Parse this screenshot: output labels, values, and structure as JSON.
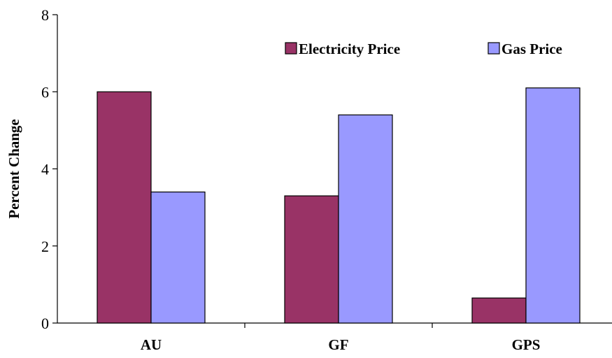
{
  "chart_data": {
    "type": "bar",
    "title": "",
    "xlabel": "",
    "ylabel": "Percent Change",
    "ylim": [
      0,
      8
    ],
    "yticks": [
      "0",
      "2",
      "4",
      "6",
      "8"
    ],
    "categories": [
      "AU",
      "GF",
      "GPS"
    ],
    "grid": false,
    "legend_position": "top-right",
    "series": [
      {
        "name": "Electricity Price",
        "color": "#993366",
        "values": [
          6.0,
          3.3,
          0.65
        ]
      },
      {
        "name": "Gas Price",
        "color": "#9999FF",
        "values": [
          3.4,
          5.4,
          6.1
        ]
      }
    ]
  }
}
